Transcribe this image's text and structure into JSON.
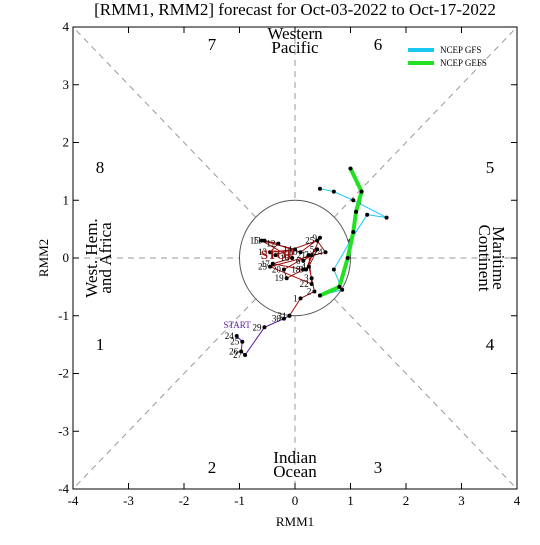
{
  "chart_data": {
    "type": "line",
    "title": "[RMM1, RMM2] forecast for Oct-03-2022 to Oct-17-2022",
    "xlabel": "RMM1",
    "ylabel": "RMM2",
    "xlim": [
      -4,
      4
    ],
    "ylim": [
      -4,
      4
    ],
    "xticks": [
      -4,
      -3,
      -2,
      -1,
      0,
      1,
      2,
      3,
      4
    ],
    "yticks": [
      -4,
      -3,
      -2,
      -1,
      0,
      1,
      2,
      3,
      4
    ],
    "phase_labels": [
      "1",
      "2",
      "3",
      "4",
      "5",
      "6",
      "7",
      "8"
    ],
    "region_labels": [
      [
        "Western",
        "Pacific"
      ],
      [
        "Indian",
        "Ocean"
      ],
      [
        "West. Hem.",
        "and Africa"
      ],
      [
        "Maritime",
        "Continent"
      ]
    ],
    "start_label": "START",
    "stop_label": "STOP",
    "series": [
      {
        "color": "#5a1aa0",
        "x": [
          -1.05,
          -0.95,
          -0.97,
          -0.9,
          -0.55,
          -0.2,
          -0.1
        ],
        "y": [
          -1.35,
          -1.45,
          -1.62,
          -1.68,
          -1.2,
          -1.05,
          -1.0
        ],
        "labels": [
          "24",
          "25",
          "26",
          "27",
          "29",
          "30",
          "31"
        ]
      },
      {
        "color": "#a01010",
        "x": [
          -0.1,
          0.1,
          0.35,
          0.3,
          0.25,
          0.4,
          0.15,
          0.3,
          0.2,
          0.45,
          0.1,
          -0.55,
          -0.3,
          -0.45,
          0.0,
          -0.6,
          -0.05,
          -0.4,
          0.15,
          -0.15,
          -0.2,
          0.25,
          0.3,
          -0.45,
          0.55,
          0.4,
          -0.35
        ],
        "y": [
          -1.0,
          -0.7,
          -0.58,
          -0.35,
          -0.15,
          0.15,
          -0.05,
          0.05,
          -0.2,
          0.35,
          0.1,
          0.3,
          0.25,
          0.1,
          0.15,
          0.3,
          0.0,
          -0.1,
          -0.2,
          -0.35,
          -0.2,
          0.05,
          -0.45,
          -0.15,
          0.1,
          0.3,
          0.05
        ],
        "labels": [
          null,
          "1",
          "2",
          "3",
          "4",
          "5",
          "6",
          "7",
          "8",
          "9",
          "10",
          "11",
          "12",
          "13",
          "14",
          "15",
          "16",
          "17",
          "18",
          "19",
          "20",
          "21",
          "22",
          "23",
          "24",
          "25",
          null
        ]
      },
      {
        "name": "NCEP GFS",
        "color": "#19c8f0",
        "width": 1,
        "x": [
          0.45,
          0.85,
          0.7,
          1.0,
          1.3,
          1.65,
          1.15,
          1.05,
          0.7,
          0.45
        ],
        "y": [
          -0.65,
          -0.55,
          -0.2,
          0.3,
          0.75,
          0.7,
          0.95,
          1.0,
          1.15,
          1.2
        ]
      },
      {
        "name": "NCEP GEFS",
        "color": "#22e022",
        "width": 4,
        "x": [
          0.45,
          0.8,
          0.95,
          1.05,
          1.1,
          1.2,
          1.0
        ],
        "y": [
          -0.65,
          -0.5,
          0.0,
          0.45,
          0.8,
          1.15,
          1.55
        ]
      }
    ]
  }
}
